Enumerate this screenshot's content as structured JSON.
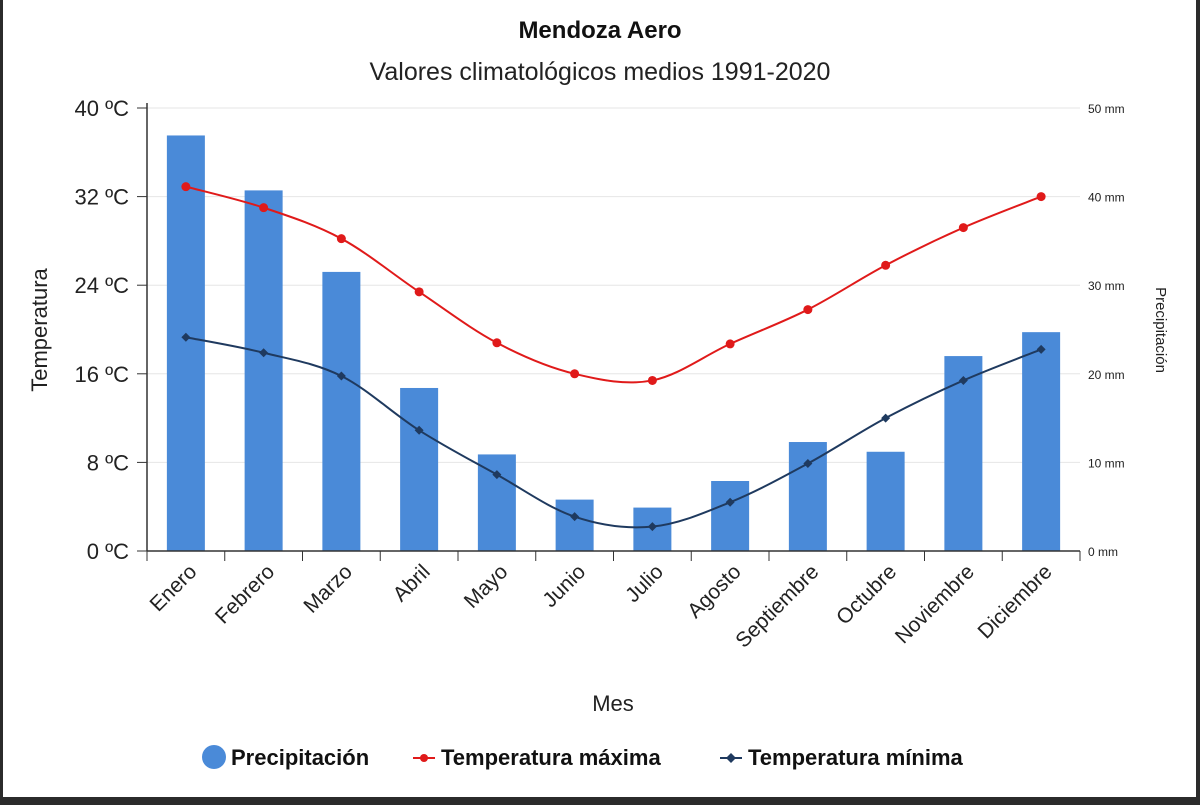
{
  "chart_data": {
    "type": "bar+line",
    "title": "Mendoza Aero",
    "subtitle": "Valores climatológicos medios 1991-2020",
    "xlabel": "Mes",
    "ylabel_left": "Temperatura",
    "ylabel_right": "Precipitación",
    "categories": [
      "Enero",
      "Febrero",
      "Marzo",
      "Abril",
      "Mayo",
      "Junio",
      "Julio",
      "Agosto",
      "Septiembre",
      "Octubre",
      "Noviembre",
      "Diciembre"
    ],
    "y_left": {
      "range": [
        0,
        40
      ],
      "ticks": [
        "0 ºC",
        "8 ºC",
        "16 ºC",
        "24 ºC",
        "32 ºC",
        "40 ºC"
      ],
      "tick_values": [
        0,
        8,
        16,
        24,
        32,
        40
      ]
    },
    "y_right": {
      "range": [
        0,
        50
      ],
      "ticks": [
        "0 mm",
        "10 mm",
        "20 mm",
        "30 mm",
        "40 mm",
        "50 mm"
      ],
      "tick_values": [
        0,
        10,
        20,
        30,
        40,
        50
      ]
    },
    "grid": true,
    "legend_position": "bottom",
    "series": [
      {
        "name": "Precipitación",
        "type": "bar",
        "axis": "right",
        "color": "#4a8ad8",
        "values": [
          46.9,
          40.7,
          31.5,
          18.4,
          10.9,
          5.8,
          4.9,
          7.9,
          12.3,
          11.2,
          22.0,
          24.7
        ]
      },
      {
        "name": "Temperatura máxima",
        "type": "line",
        "axis": "left",
        "color": "#e01a1a",
        "values": [
          32.9,
          31.0,
          28.2,
          23.4,
          18.8,
          16.0,
          15.4,
          18.7,
          21.8,
          25.8,
          29.2,
          32.0
        ]
      },
      {
        "name": "Temperatura mínima",
        "type": "line",
        "axis": "left",
        "color": "#1f3a5f",
        "values": [
          19.3,
          17.9,
          15.8,
          10.9,
          6.9,
          3.1,
          2.2,
          4.4,
          7.9,
          12.0,
          15.4,
          18.2
        ]
      }
    ]
  }
}
